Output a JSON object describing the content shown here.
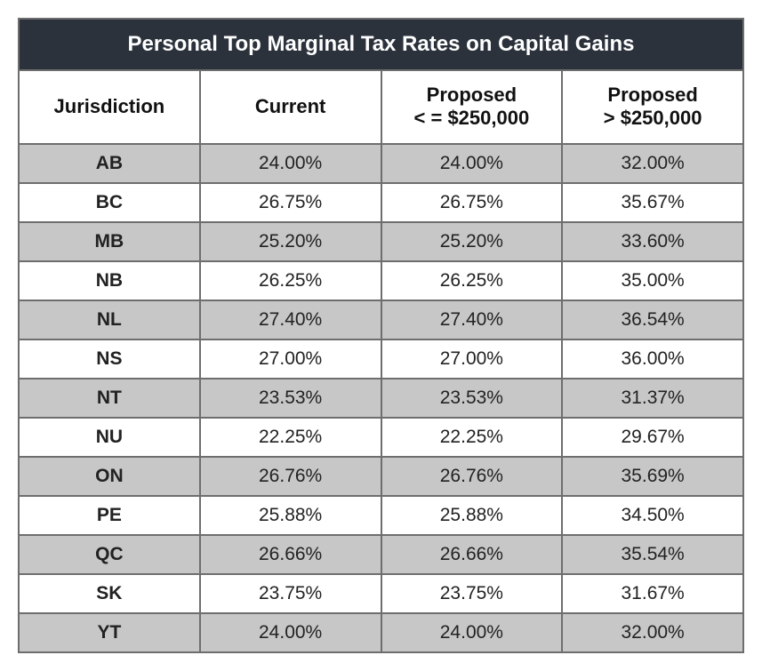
{
  "table": {
    "type": "table",
    "title": "Personal Top Marginal Tax Rates on Capital Gains",
    "columns": [
      "Jurisdiction",
      "Current",
      "Proposed\n< = $250,000",
      "Proposed\n> $250,000"
    ],
    "rows": [
      [
        "AB",
        "24.00%",
        "24.00%",
        "32.00%"
      ],
      [
        "BC",
        "26.75%",
        "26.75%",
        "35.67%"
      ],
      [
        "MB",
        "25.20%",
        "25.20%",
        "33.60%"
      ],
      [
        "NB",
        "26.25%",
        "26.25%",
        "35.00%"
      ],
      [
        "NL",
        "27.40%",
        "27.40%",
        "36.54%"
      ],
      [
        "NS",
        "27.00%",
        "27.00%",
        "36.00%"
      ],
      [
        "NT",
        "23.53%",
        "23.53%",
        "31.37%"
      ],
      [
        "NU",
        "22.25%",
        "22.25%",
        "29.67%"
      ],
      [
        "ON",
        "26.76%",
        "26.76%",
        "35.69%"
      ],
      [
        "PE",
        "25.88%",
        "25.88%",
        "34.50%"
      ],
      [
        "QC",
        "26.66%",
        "26.66%",
        "35.54%"
      ],
      [
        "SK",
        "23.75%",
        "23.75%",
        "31.67%"
      ],
      [
        "YT",
        "24.00%",
        "24.00%",
        "32.00%"
      ]
    ],
    "styling": {
      "title_background": "#2b323c",
      "title_color": "#ffffff",
      "title_fontsize": 24,
      "header_background": "#ffffff",
      "header_fontsize": 22,
      "cell_fontsize": 21,
      "row_odd_background": "#c7c7c7",
      "row_even_background": "#ffffff",
      "border_color": "#6e6e6e",
      "column_widths": [
        "25%",
        "22%",
        "28%",
        "25%"
      ]
    }
  }
}
